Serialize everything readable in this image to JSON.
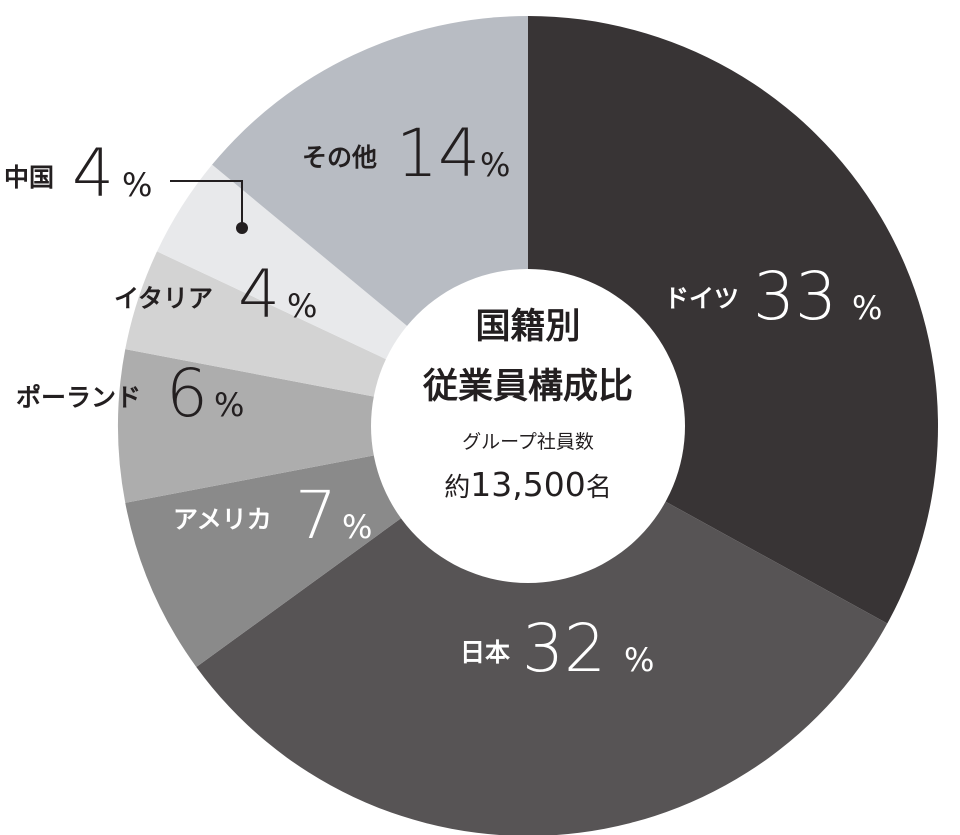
{
  "chart_data": {
    "type": "pie",
    "style": "donut",
    "center": {
      "title_line1": "国籍別",
      "title_line2": "従業員構成比",
      "subtitle": "グループ社員数",
      "total_prefix": "約",
      "total_value": "13,500",
      "total_suffix": "名"
    },
    "slices": [
      {
        "label": "ドイツ",
        "value": 33,
        "display": "33",
        "unit": "%",
        "color": "#383435"
      },
      {
        "label": "日本",
        "value": 32,
        "display": "32",
        "unit": "%",
        "color": "#575455"
      },
      {
        "label": "アメリカ",
        "value": 7,
        "display": "7",
        "unit": "%",
        "color": "#8a8a8a"
      },
      {
        "label": "ポーランド",
        "value": 6,
        "display": "6",
        "unit": "%",
        "color": "#adadad"
      },
      {
        "label": "イタリア",
        "value": 4,
        "display": "4",
        "unit": "%",
        "color": "#d3d3d3"
      },
      {
        "label": "中国",
        "value": 4,
        "display": "4",
        "unit": "%",
        "color": "#e8e9eb"
      },
      {
        "label": "その他",
        "value": 14,
        "display": "14",
        "unit": "%",
        "color": "#b8bcc3"
      }
    ]
  }
}
